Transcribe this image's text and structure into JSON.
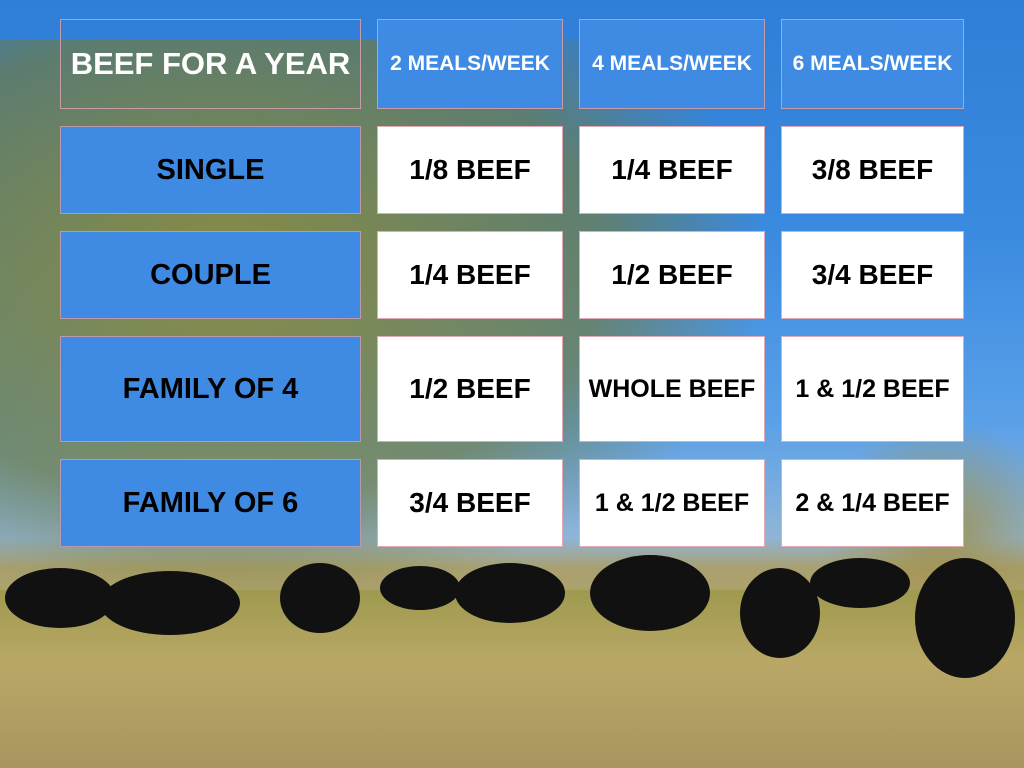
{
  "title": "BEEF FOR A YEAR",
  "columns": [
    "2 MEALS/WEEK",
    "4 MEALS/WEEK",
    "6 MEALS/WEEK"
  ],
  "rows": [
    {
      "label": "SINGLE",
      "values": [
        "1/8 BEEF",
        "1/4 BEEF",
        "3/8 BEEF"
      ]
    },
    {
      "label": "COUPLE",
      "values": [
        "1/4 BEEF",
        "1/2 BEEF",
        "3/4 BEEF"
      ]
    },
    {
      "label": "FAMILY OF 4",
      "values": [
        "1/2 BEEF",
        "WHOLE BEEF",
        "1 & 1/2 BEEF"
      ]
    },
    {
      "label": "FAMILY OF 6",
      "values": [
        "3/4 BEEF",
        "1 & 1/2 BEEF",
        "2 & 1/4 BEEF"
      ]
    }
  ],
  "colors": {
    "header_blue": "#3f8ae2",
    "cell_white": "#ffffff"
  }
}
